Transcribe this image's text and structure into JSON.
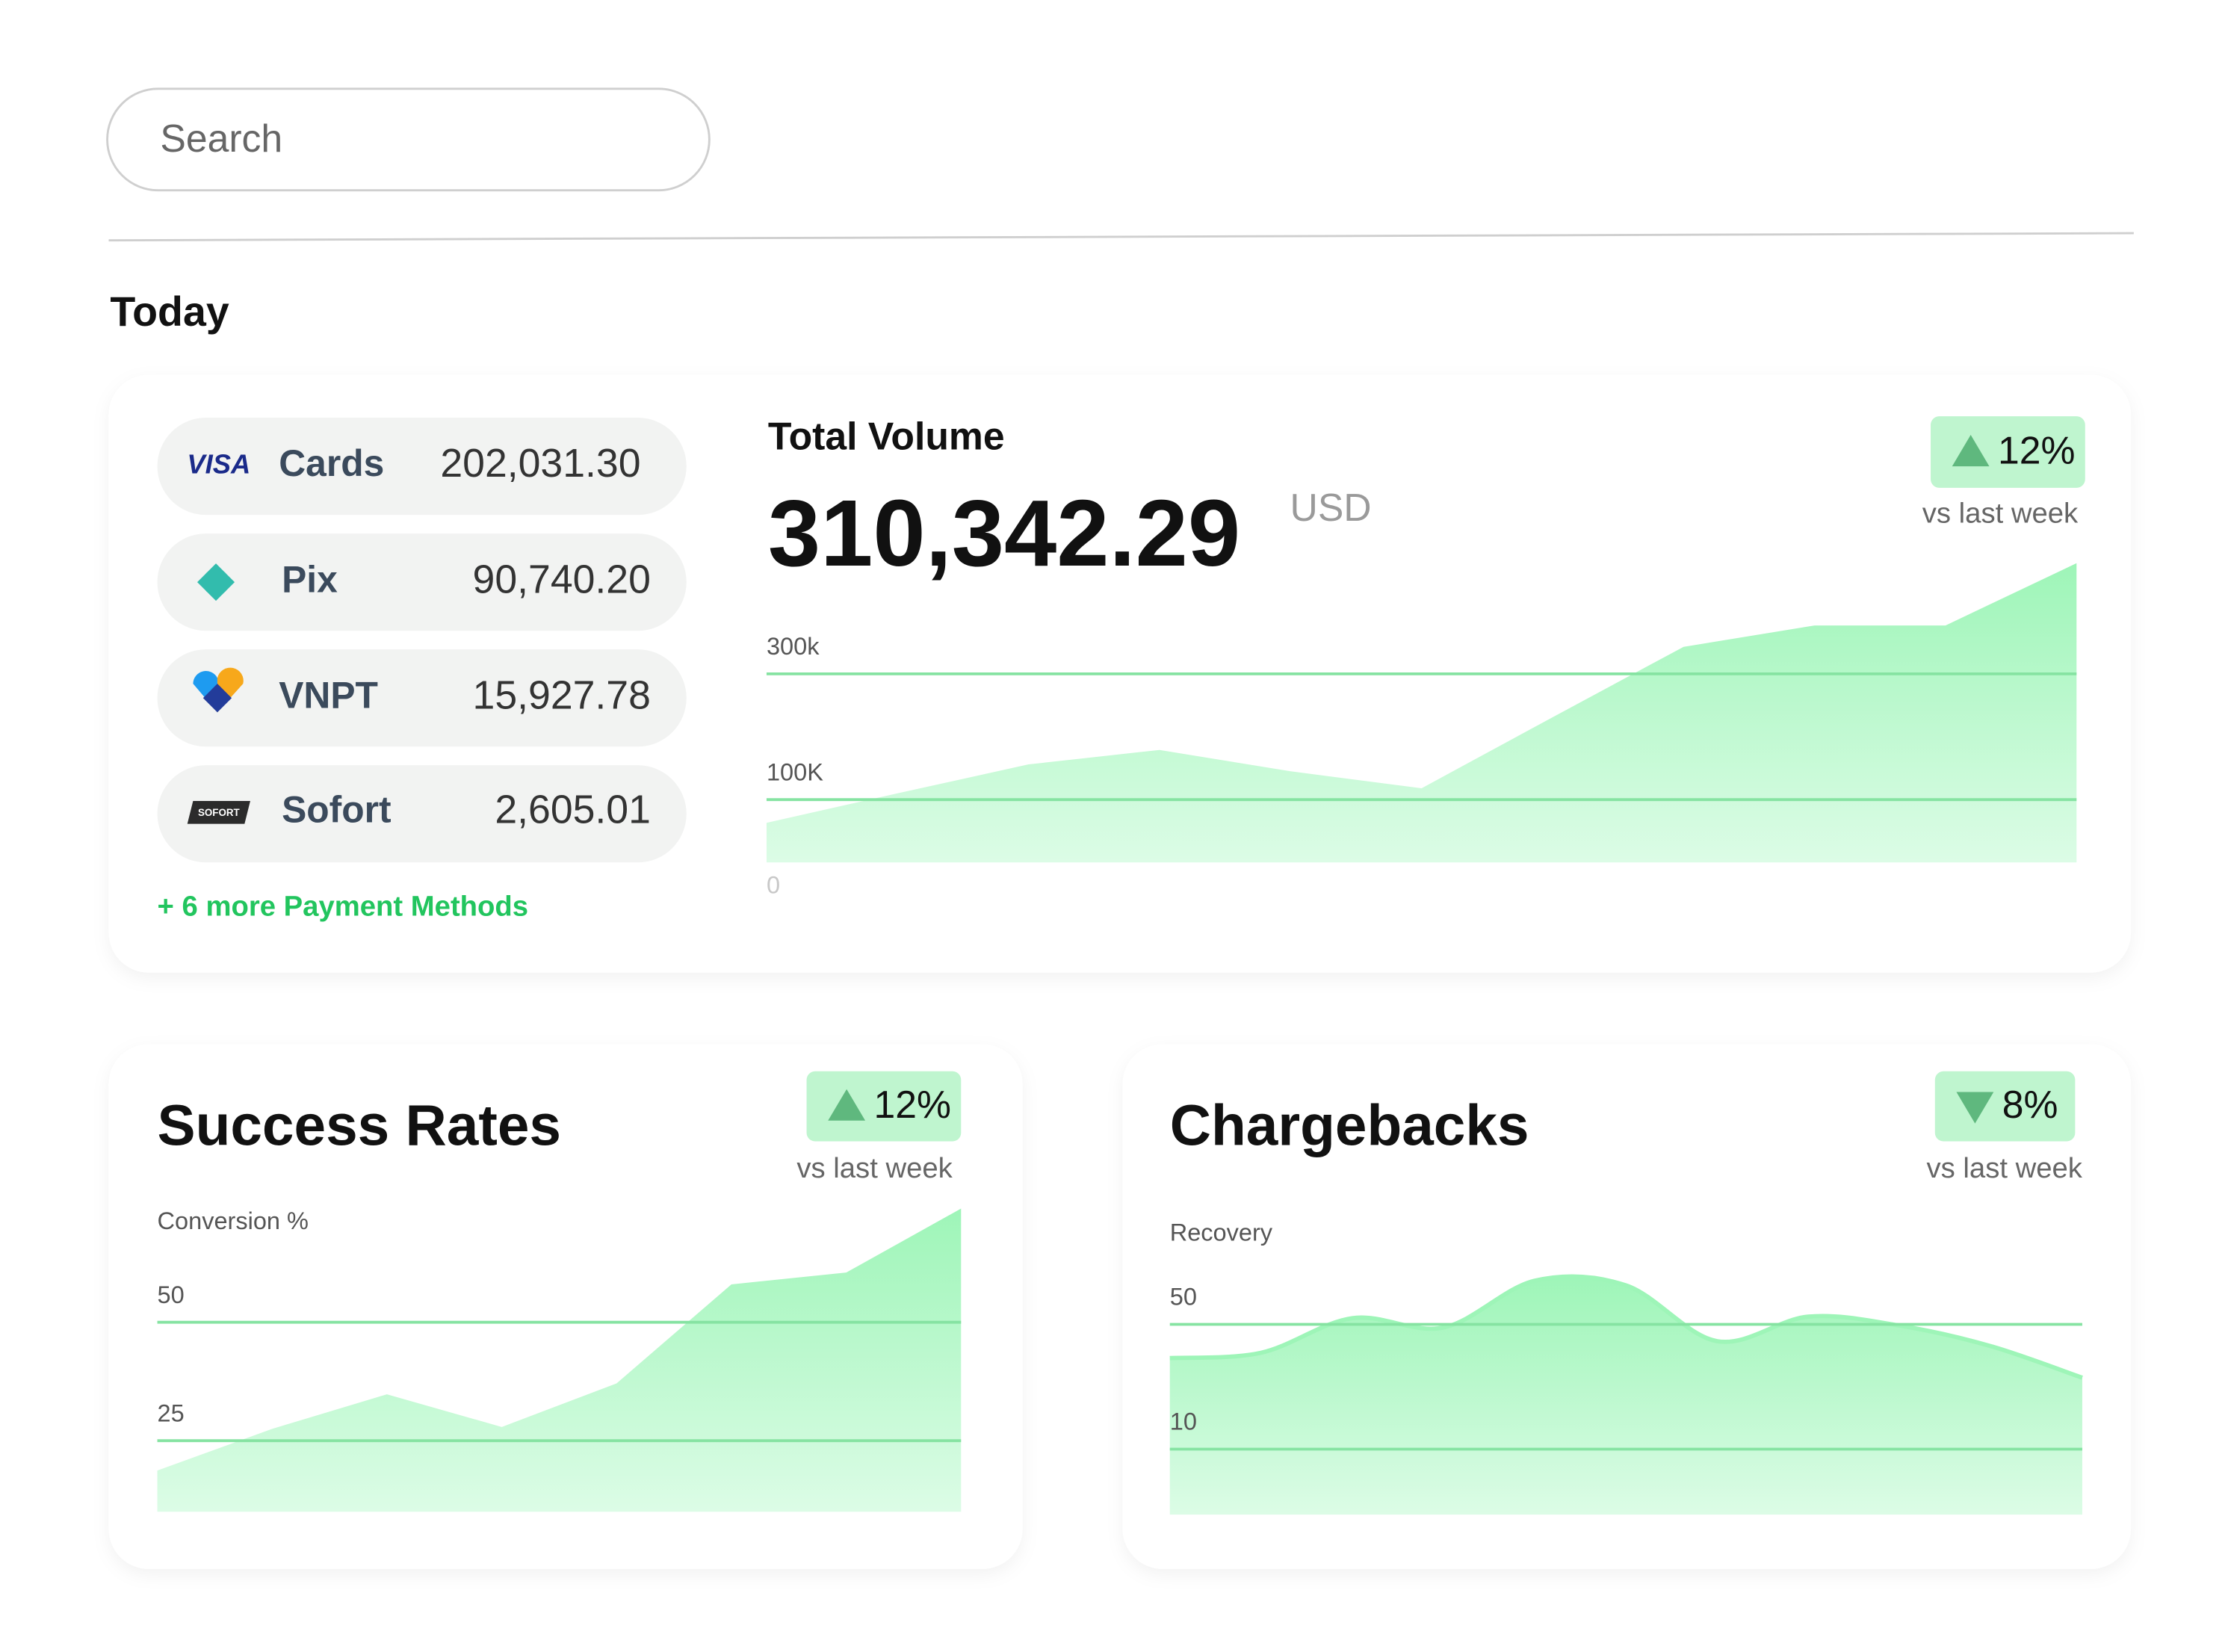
{
  "search": {
    "placeholder": "Search"
  },
  "section_title": "Today",
  "payment_methods": [
    {
      "logo": "VISA",
      "name": "Cards",
      "amount": "202,031.30"
    },
    {
      "name": "Pix",
      "amount": "90,740.20"
    },
    {
      "name": "VNPT",
      "amount": "15,927.78"
    },
    {
      "logo": "SOFORT",
      "name": "Sofort",
      "amount": "2,605.01"
    }
  ],
  "more_link": "+ 6 more Payment Methods",
  "chart_data": [
    {
      "type": "area",
      "title": "Total Volume",
      "total": "310,342.29",
      "unit": "USD",
      "badge": {
        "text": "12%",
        "direction": "up",
        "note": "vs last week"
      },
      "values": [
        63000,
        110000,
        156000,
        179000,
        145000,
        118000,
        231000,
        343000,
        377000,
        377000,
        476000
      ],
      "ylim": [
        0,
        480000
      ],
      "yticks": [
        {
          "value": 300000,
          "label": "300k"
        },
        {
          "value": 100000,
          "label": "100K"
        },
        0
      ],
      "color": "#9ef5b8",
      "grid": true
    },
    {
      "type": "area",
      "title": "Success Rates",
      "y_label": "Conversion %",
      "badge": {
        "text": "12%",
        "direction": "up",
        "note": "vs last week"
      },
      "values": [
        18.7,
        27.5,
        34.8,
        27.9,
        37.1,
        58,
        60.5,
        74
      ],
      "ylim": [
        10,
        74
      ],
      "yticks": [
        50,
        25
      ],
      "color": "#9ef5b8",
      "grid": true
    },
    {
      "type": "area",
      "title": "Chargebacks",
      "y_label": "Recovery",
      "smooth": true,
      "badge": {
        "text": "8%",
        "direction": "down",
        "note": "vs last week"
      },
      "values": [
        39.2,
        40.9,
        52,
        49,
        64,
        62.5,
        44.6,
        52.5,
        49.6,
        43,
        32.9
      ],
      "ylim": [
        -11,
        72
      ],
      "yticks": [
        50,
        10
      ],
      "color": "#9ef5b8",
      "grid": true
    }
  ]
}
